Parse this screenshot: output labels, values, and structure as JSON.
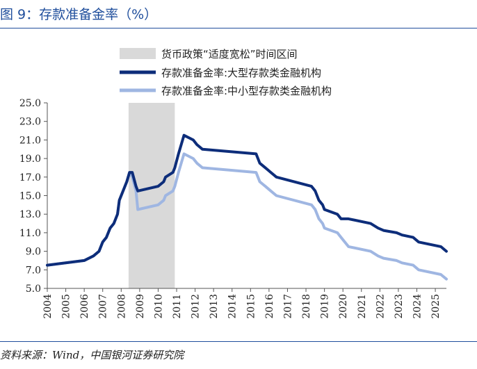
{
  "header": {
    "title": "图 9：存款准备金率（%）"
  },
  "footer": {
    "source": "资料来源：Wind，中国银河证券研究院"
  },
  "chart_data": {
    "type": "line",
    "title": "存款准备金率（%）",
    "xlabel": "",
    "ylabel": "",
    "ylim": [
      5.0,
      25.0
    ],
    "yticks": [
      "5.0",
      "7.0",
      "9.0",
      "11.0",
      "13.0",
      "15.0",
      "17.0",
      "19.0",
      "21.0",
      "23.0",
      "25.0"
    ],
    "xlim": [
      2004,
      2025.6
    ],
    "xticks": [
      "2004",
      "2005",
      "2006",
      "2007",
      "2008",
      "2009",
      "2010",
      "2011",
      "2012",
      "2013",
      "2014",
      "2015",
      "2016",
      "2017",
      "2018",
      "2019",
      "2020",
      "2021",
      "2022",
      "2023",
      "2024",
      "2025"
    ],
    "legend_position": "top",
    "shaded_band": {
      "label": "货币政策“适度宽松”时间区间",
      "x_start": 2008.4,
      "x_end": 2010.9,
      "color": "#d9d9d9"
    },
    "series": [
      {
        "name": "存款准备金率:大型存款类金融机构",
        "color": "#0d2d7a",
        "points": [
          [
            2004.0,
            7.5
          ],
          [
            2006.0,
            8.0
          ],
          [
            2006.5,
            8.5
          ],
          [
            2006.8,
            9.0
          ],
          [
            2007.0,
            10.0
          ],
          [
            2007.2,
            10.5
          ],
          [
            2007.4,
            11.5
          ],
          [
            2007.6,
            12.0
          ],
          [
            2007.8,
            13.0
          ],
          [
            2007.9,
            14.5
          ],
          [
            2008.1,
            15.5
          ],
          [
            2008.3,
            16.5
          ],
          [
            2008.45,
            17.5
          ],
          [
            2008.6,
            17.5
          ],
          [
            2008.8,
            16.0
          ],
          [
            2008.9,
            15.5
          ],
          [
            2010.0,
            16.0
          ],
          [
            2010.3,
            16.5
          ],
          [
            2010.4,
            17.0
          ],
          [
            2010.8,
            17.5
          ],
          [
            2010.9,
            18.0
          ],
          [
            2011.1,
            19.5
          ],
          [
            2011.4,
            21.5
          ],
          [
            2011.9,
            21.0
          ],
          [
            2012.1,
            20.5
          ],
          [
            2012.4,
            20.0
          ],
          [
            2015.3,
            19.5
          ],
          [
            2015.5,
            18.5
          ],
          [
            2015.8,
            18.0
          ],
          [
            2016.1,
            17.5
          ],
          [
            2016.4,
            17.0
          ],
          [
            2018.3,
            16.0
          ],
          [
            2018.5,
            15.5
          ],
          [
            2018.7,
            14.5
          ],
          [
            2018.9,
            14.0
          ],
          [
            2019.0,
            13.5
          ],
          [
            2019.7,
            13.0
          ],
          [
            2019.9,
            12.5
          ],
          [
            2020.3,
            12.5
          ],
          [
            2021.5,
            12.0
          ],
          [
            2021.9,
            11.5
          ],
          [
            2022.2,
            11.25
          ],
          [
            2022.9,
            11.0
          ],
          [
            2023.2,
            10.75
          ],
          [
            2023.8,
            10.5
          ],
          [
            2024.1,
            10.0
          ],
          [
            2025.3,
            9.5
          ],
          [
            2025.6,
            9.0
          ]
        ]
      },
      {
        "name": "存款准备金率:中小型存款类金融机构",
        "color": "#9fb6e2",
        "points": [
          [
            2004.0,
            7.5
          ],
          [
            2006.0,
            8.0
          ],
          [
            2006.5,
            8.5
          ],
          [
            2006.8,
            9.0
          ],
          [
            2007.0,
            10.0
          ],
          [
            2007.2,
            10.5
          ],
          [
            2007.4,
            11.5
          ],
          [
            2007.6,
            12.0
          ],
          [
            2007.8,
            13.0
          ],
          [
            2007.9,
            14.5
          ],
          [
            2008.1,
            15.5
          ],
          [
            2008.3,
            16.5
          ],
          [
            2008.45,
            17.5
          ],
          [
            2008.6,
            17.0
          ],
          [
            2008.8,
            15.5
          ],
          [
            2008.9,
            13.5
          ],
          [
            2010.0,
            14.0
          ],
          [
            2010.3,
            14.5
          ],
          [
            2010.4,
            15.0
          ],
          [
            2010.8,
            15.5
          ],
          [
            2010.9,
            16.0
          ],
          [
            2011.1,
            17.5
          ],
          [
            2011.4,
            19.5
          ],
          [
            2011.9,
            19.0
          ],
          [
            2012.1,
            18.5
          ],
          [
            2012.4,
            18.0
          ],
          [
            2015.3,
            17.5
          ],
          [
            2015.5,
            16.5
          ],
          [
            2015.8,
            16.0
          ],
          [
            2016.1,
            15.5
          ],
          [
            2016.4,
            15.0
          ],
          [
            2018.3,
            14.0
          ],
          [
            2018.5,
            13.5
          ],
          [
            2018.7,
            12.5
          ],
          [
            2018.9,
            12.0
          ],
          [
            2019.0,
            11.5
          ],
          [
            2019.7,
            11.0
          ],
          [
            2019.9,
            10.5
          ],
          [
            2020.3,
            9.5
          ],
          [
            2021.5,
            9.0
          ],
          [
            2021.9,
            8.5
          ],
          [
            2022.2,
            8.25
          ],
          [
            2022.9,
            8.0
          ],
          [
            2023.2,
            7.75
          ],
          [
            2023.8,
            7.5
          ],
          [
            2024.1,
            7.0
          ],
          [
            2025.3,
            6.5
          ],
          [
            2025.6,
            6.0
          ]
        ]
      }
    ]
  }
}
